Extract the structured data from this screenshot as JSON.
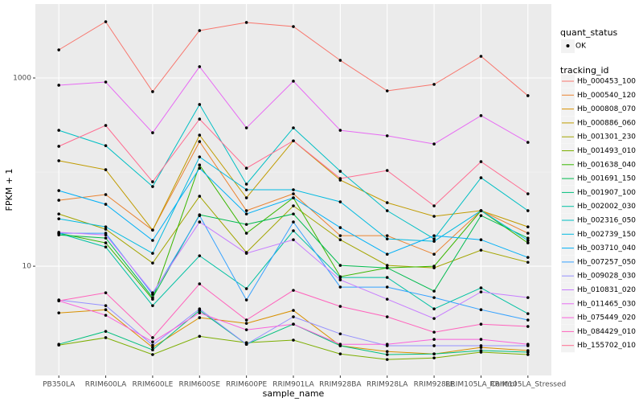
{
  "chart_data": {
    "type": "line",
    "x_label": "sample_name",
    "y_label": "FPKM + 1",
    "log_scale": true,
    "grid": true,
    "legend_position": "right",
    "point_legend_title": "quant_status",
    "point_legend_entries": [
      "OK"
    ],
    "point_color": "#000000",
    "series_legend_title": "tracking_id",
    "categories": [
      "PB350LA",
      "RRIM600LA",
      "RRIM600LE",
      "RRIM600SE",
      "RRIM600PE",
      "RRIM901LA",
      "RRIM928BA",
      "RRIM928LA",
      "RRIM928LE",
      "RRIM105LA_Control",
      "RRIM105LA_Stressed"
    ],
    "ylim": [
      0.69,
      6110
    ],
    "yticks": [
      10,
      1000
    ],
    "series": [
      {
        "name": "Hb_000453_100",
        "color": "#F8766D",
        "values": [
          1990,
          3960,
          716,
          3190,
          3890,
          3520,
          1540,
          730,
          855,
          1700,
          649
        ]
      },
      {
        "name": "Hb_000540_120",
        "color": "#EA8331",
        "values": [
          50.2,
          57.7,
          24.2,
          211,
          38.9,
          58.8,
          21.1,
          21.1,
          13.4,
          38.9,
          22.4
        ]
      },
      {
        "name": "Hb_000808_070",
        "color": "#D89000",
        "values": [
          3.19,
          3.45,
          1.37,
          2.84,
          2.47,
          3.39,
          1.43,
          1.24,
          1.17,
          1.37,
          1.27
        ]
      },
      {
        "name": "Hb_000886_060",
        "color": "#C09B00",
        "values": [
          132,
          106,
          24.2,
          247,
          53.3,
          215,
          82.2,
          47.3,
          33.9,
          38.9,
          26.2
        ]
      },
      {
        "name": "Hb_001301_230",
        "color": "#A3A500",
        "values": [
          35.9,
          24.7,
          10.8,
          55.4,
          14.0,
          43.8,
          19.1,
          10.2,
          9.61,
          14.8,
          11.0
        ]
      },
      {
        "name": "Hb_001493_010",
        "color": "#7CAE00",
        "values": [
          1.45,
          1.74,
          1.15,
          1.8,
          1.54,
          1.64,
          1.17,
          1.02,
          1.06,
          1.22,
          1.15
        ]
      },
      {
        "name": "Hb_001638_040",
        "color": "#39B600",
        "values": [
          22.4,
          17.7,
          4.46,
          119,
          22.4,
          53.3,
          7.74,
          9.61,
          10.0,
          38.9,
          17.7
        ]
      },
      {
        "name": "Hb_001691_150",
        "color": "#00BB4E",
        "values": [
          21.5,
          19.9,
          4.64,
          35.2,
          27.8,
          35.9,
          10.2,
          9.61,
          5.43,
          34.5,
          19.9
        ]
      },
      {
        "name": "Hb_001907_100",
        "color": "#00BF7D",
        "values": [
          1.48,
          2.03,
          1.29,
          3.39,
          1.48,
          2.42,
          1.43,
          1.15,
          1.17,
          1.27,
          1.22
        ]
      },
      {
        "name": "Hb_002002_030",
        "color": "#00C1A3",
        "values": [
          22.4,
          16.0,
          3.81,
          12.9,
          5.77,
          23.8,
          7.59,
          7.59,
          3.52,
          5.88,
          3.13
        ]
      },
      {
        "name": "Hb_002316_050",
        "color": "#00BFC4",
        "values": [
          278,
          191,
          70.2,
          523,
          74.5,
          295,
          102,
          38.9,
          19.5,
          87.1,
          38.9
        ]
      },
      {
        "name": "Hb_002739_150",
        "color": "#00BAE0",
        "values": [
          31.9,
          26.2,
          13.7,
          145,
          64.9,
          64.9,
          48.3,
          19.5,
          18.4,
          38.9,
          18.8
        ]
      },
      {
        "name": "Hb_003710_040",
        "color": "#00B0F6",
        "values": [
          63.6,
          45.5,
          18.8,
          110,
          35.9,
          53.3,
          25.7,
          13.4,
          21.1,
          19.1,
          12.4
        ]
      },
      {
        "name": "Hb_007257_050",
        "color": "#35A2FF",
        "values": [
          22.4,
          22.4,
          5.02,
          34.5,
          4.38,
          29.5,
          6.0,
          6.0,
          4.64,
          3.45,
          2.68
        ]
      },
      {
        "name": "Hb_009028_030",
        "color": "#9590FF",
        "values": [
          4.38,
          3.81,
          1.45,
          3.52,
          1.48,
          2.9,
          1.91,
          1.43,
          1.43,
          1.43,
          1.43
        ]
      },
      {
        "name": "Hb_010831_020",
        "color": "#C77CFF",
        "values": [
          22.9,
          21.5,
          5.22,
          29.5,
          13.7,
          19.1,
          7.16,
          4.46,
          2.78,
          5.33,
          4.64
        ]
      },
      {
        "name": "Hb_011465_030",
        "color": "#E76BF3",
        "values": [
          838,
          906,
          262,
          1320,
          295,
          925,
          278,
          243,
          199,
          398,
          207
        ]
      },
      {
        "name": "Hb_075449_020",
        "color": "#FA62DB",
        "values": [
          4.29,
          3.01,
          1.57,
          3.19,
          2.11,
          2.42,
          1.48,
          1.48,
          1.67,
          1.67,
          1.48
        ]
      },
      {
        "name": "Hb_084429_010",
        "color": "#FF62BC",
        "values": [
          4.29,
          5.22,
          1.74,
          6.49,
          2.68,
          5.54,
          3.74,
          2.9,
          1.99,
          2.42,
          2.29
        ]
      },
      {
        "name": "Hb_155702_010",
        "color": "#FF6C91",
        "values": [
          188,
          313,
          78.9,
          366,
          110,
          215,
          85.5,
          104,
          43.8,
          129,
          58.8
        ]
      }
    ]
  }
}
